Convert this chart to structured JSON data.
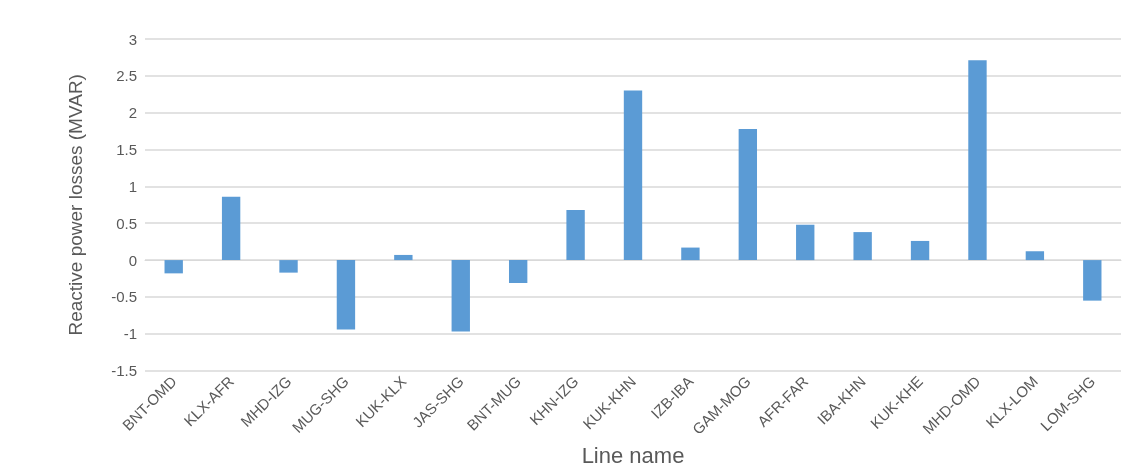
{
  "chart_data": {
    "type": "bar",
    "xlabel": "Line name",
    "ylabel": "Reactive power losses (MVAR)",
    "categories": [
      "BNT-OMD",
      "KLX-AFR",
      "MHD-IZG",
      "MUG-SHG",
      "KUK-KLX",
      "JAS-SHG",
      "BNT-MUG",
      "KHN-IZG",
      "KUK-KHN",
      "IZB-IBA",
      "GAM-MOG",
      "AFR-FAR",
      "IBA-KHN",
      "KUK-KHE",
      "MHD-OMD",
      "KLX-LOM",
      "LOM-SHG"
    ],
    "values": [
      -0.18,
      0.86,
      -0.17,
      -0.94,
      0.07,
      -0.97,
      -0.31,
      0.68,
      2.3,
      0.17,
      1.78,
      0.48,
      0.38,
      0.26,
      2.71,
      0.12,
      -0.55
    ],
    "color": "#5b9bd5",
    "ylim": [
      -1.5,
      3
    ],
    "yticks": [
      -1.5,
      -1,
      -0.5,
      0,
      0.5,
      1,
      1.5,
      2,
      2.5,
      3
    ],
    "grid": "y"
  }
}
